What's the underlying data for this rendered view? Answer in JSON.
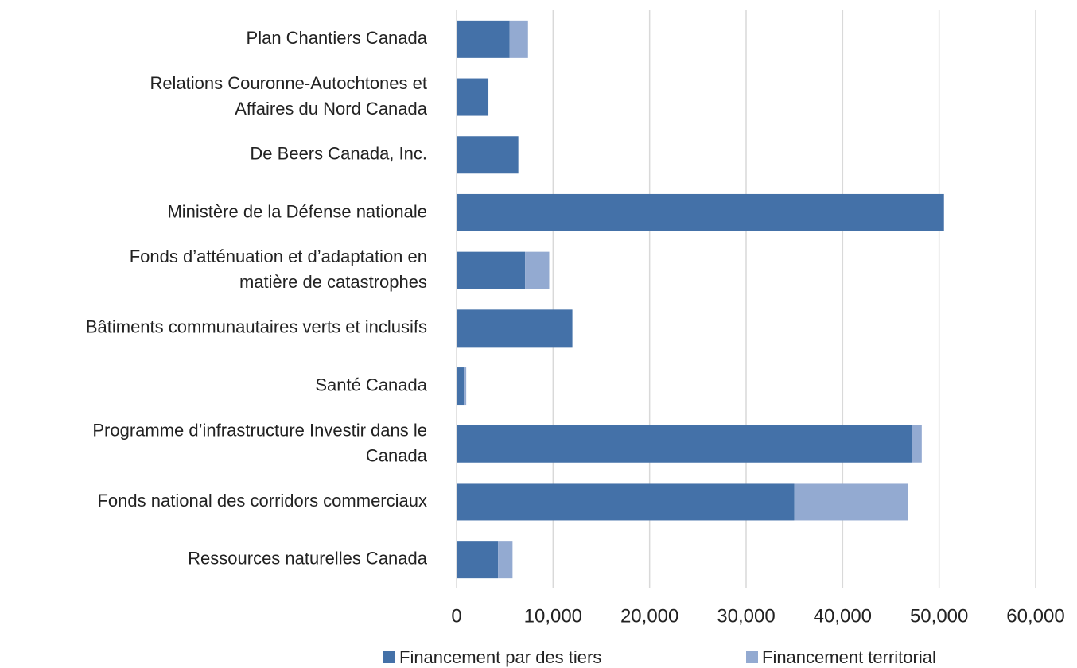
{
  "chart_data": {
    "type": "stacked_barh",
    "categories": [
      "Plan Chantiers Canada",
      "Relations Couronne-Autochtones et\nAffaires du Nord Canada",
      "De Beers Canada, Inc.",
      "Ministère de la Défense nationale",
      "Fonds d’atténuation et d’adaptation en\nmatière de catastrophes",
      "Bâtiments communautaires verts et inclusifs",
      "Santé Canada",
      "Programme d’infrastructure Investir dans le\nCanada",
      "Fonds national des corridors commerciaux",
      "Ressources naturelles Canada"
    ],
    "series": [
      {
        "name": "Financement par des tiers",
        "color": "#4471a8",
        "values": [
          5500,
          3300,
          6400,
          50500,
          7100,
          12000,
          750,
          47200,
          35000,
          4300
        ]
      },
      {
        "name": "Financement territorial",
        "color": "#93aad1",
        "values": [
          1900,
          0,
          0,
          0,
          2500,
          0,
          250,
          1000,
          11800,
          1500
        ]
      }
    ],
    "xlim": [
      0,
      60000
    ],
    "xticks": [
      0,
      {
        "value": 10000,
        "label": "10,000"
      },
      {
        "value": 20000,
        "label": "20,000"
      },
      {
        "value": 30000,
        "label": "30,000"
      },
      {
        "value": 40000,
        "label": "40,000"
      },
      {
        "value": 50000,
        "label": "50,000"
      },
      {
        "value": 60000,
        "label": "60,000"
      }
    ],
    "grid": true,
    "legend": "bottom"
  }
}
